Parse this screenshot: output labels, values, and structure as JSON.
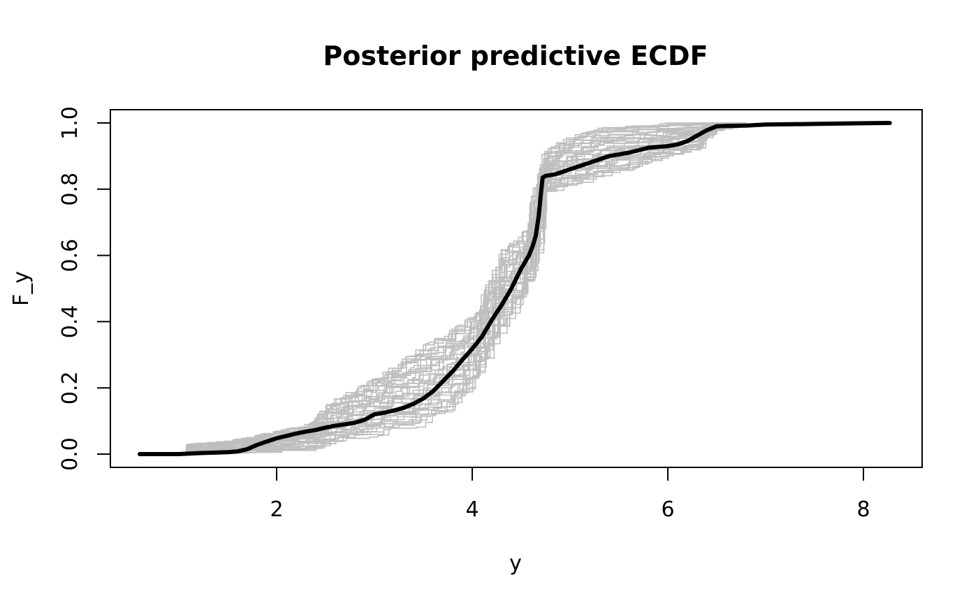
{
  "chart_data": {
    "type": "line",
    "title": "Posterior predictive ECDF",
    "xlabel": "y",
    "ylabel": "F_y",
    "xlim": [
      0.3,
      8.6
    ],
    "ylim": [
      -0.04,
      1.04
    ],
    "xticks": [
      2,
      4,
      6,
      8
    ],
    "xtick_labels": [
      "2",
      "4",
      "6",
      "8"
    ],
    "yticks": [
      0.0,
      0.2,
      0.4,
      0.6,
      0.8,
      1.0
    ],
    "ytick_labels": [
      "0.0",
      "0.2",
      "0.4",
      "0.6",
      "0.8",
      "1.0"
    ],
    "grid": false,
    "legend": "none",
    "colors": {
      "observed": "#000000",
      "replicated": "#bebebe"
    },
    "observed": {
      "x": [
        0.6,
        1.0,
        1.2,
        1.5,
        1.6,
        1.7,
        1.8,
        1.9,
        2.0,
        2.1,
        2.2,
        2.3,
        2.4,
        2.5,
        2.6,
        2.7,
        2.8,
        2.9,
        3.0,
        3.1,
        3.2,
        3.3,
        3.4,
        3.5,
        3.6,
        3.7,
        3.8,
        3.9,
        4.0,
        4.1,
        4.2,
        4.3,
        4.4,
        4.5,
        4.58,
        4.62,
        4.65,
        4.68,
        4.7,
        4.72,
        4.75,
        4.85,
        5.0,
        5.2,
        5.4,
        5.6,
        5.8,
        6.0,
        6.1,
        6.2,
        6.3,
        6.4,
        6.5,
        6.6,
        6.8,
        7.0,
        7.5,
        8.0,
        8.27
      ],
      "y": [
        0.0,
        0.0,
        0.003,
        0.006,
        0.008,
        0.015,
        0.028,
        0.038,
        0.048,
        0.055,
        0.062,
        0.068,
        0.073,
        0.08,
        0.086,
        0.09,
        0.095,
        0.104,
        0.12,
        0.125,
        0.132,
        0.14,
        0.152,
        0.168,
        0.19,
        0.22,
        0.25,
        0.285,
        0.318,
        0.355,
        0.405,
        0.45,
        0.5,
        0.56,
        0.6,
        0.63,
        0.66,
        0.72,
        0.78,
        0.835,
        0.84,
        0.845,
        0.86,
        0.88,
        0.9,
        0.91,
        0.925,
        0.93,
        0.935,
        0.945,
        0.962,
        0.978,
        0.99,
        0.991,
        0.992,
        0.995,
        0.997,
        0.999,
        1.0
      ]
    },
    "replicates": {
      "count": 40,
      "envelope": {
        "x": [
          1.05,
          1.5,
          2.0,
          2.3,
          2.55,
          2.8,
          3.0,
          3.3,
          3.5,
          3.75,
          4.0,
          4.15,
          4.3,
          4.5,
          4.6,
          4.68,
          4.72,
          4.8,
          5.0,
          5.3,
          5.6,
          6.0,
          6.3,
          6.4,
          6.6,
          6.8
        ],
        "lower": [
          0.0,
          0.0,
          0.005,
          0.01,
          0.03,
          0.04,
          0.055,
          0.065,
          0.09,
          0.13,
          0.21,
          0.3,
          0.39,
          0.47,
          0.55,
          0.66,
          0.78,
          0.79,
          0.81,
          0.835,
          0.86,
          0.9,
          0.92,
          0.97,
          0.985,
          0.992
        ],
        "upper": [
          0.03,
          0.04,
          0.07,
          0.09,
          0.16,
          0.2,
          0.23,
          0.29,
          0.33,
          0.37,
          0.42,
          0.52,
          0.62,
          0.66,
          0.78,
          0.88,
          0.915,
          0.93,
          0.96,
          0.985,
          0.99,
          1.0,
          1.0,
          1.0,
          1.0,
          1.0
        ]
      }
    }
  }
}
